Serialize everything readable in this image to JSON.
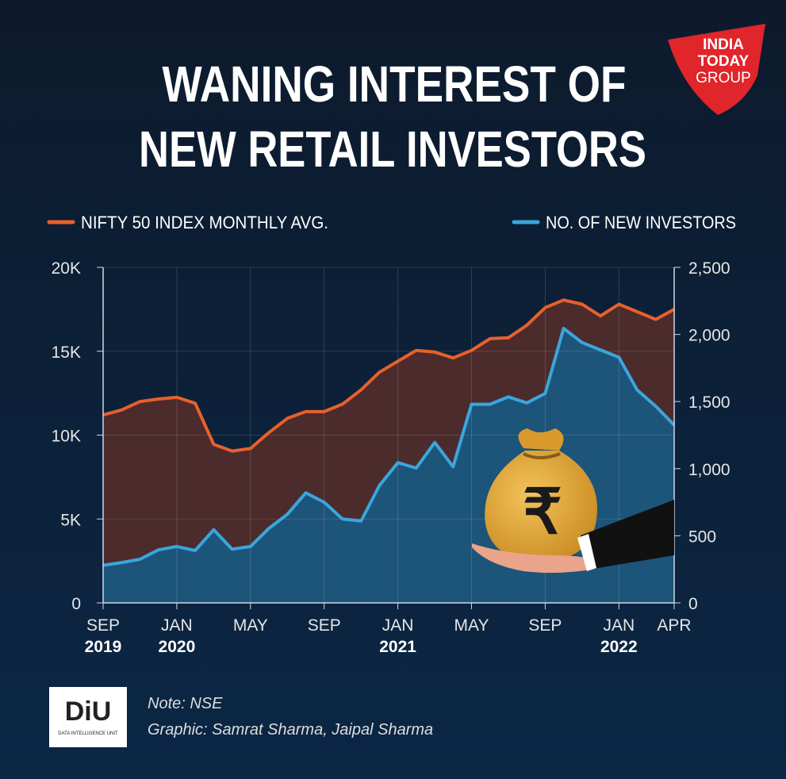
{
  "logo": {
    "line1": "INDIA",
    "line2": "TODAY",
    "line3": "GROUP"
  },
  "chart_data": {
    "type": "area",
    "title": [
      "WANING INTEREST OF",
      "NEW RETAIL INVESTORS"
    ],
    "categories": [
      "SEP",
      null,
      null,
      null,
      "JAN",
      null,
      null,
      null,
      "MAY",
      null,
      null,
      null,
      "SEP",
      null,
      null,
      null,
      "JAN",
      null,
      null,
      null,
      "MAY",
      null,
      null,
      null,
      "SEP",
      null,
      null,
      null,
      "JAN",
      null,
      null,
      "APR"
    ],
    "years": [
      "2019",
      null,
      null,
      null,
      "2020",
      null,
      null,
      null,
      null,
      null,
      null,
      null,
      null,
      null,
      null,
      null,
      "2021",
      null,
      null,
      null,
      null,
      null,
      null,
      null,
      null,
      null,
      null,
      null,
      "2022",
      null,
      null,
      null
    ],
    "series": [
      {
        "name": "NIFTY 50 INDEX MONTHLY AVG.",
        "color": "#e8602c",
        "fill": "#4b2b2c",
        "values": [
          11200,
          11500,
          12000,
          12150,
          12250,
          11900,
          9450,
          9050,
          9200,
          10150,
          11000,
          11400,
          11400,
          11850,
          12700,
          13750,
          14400,
          15050,
          14950,
          14600,
          15050,
          15750,
          15800,
          16550,
          17600,
          18050,
          17800,
          17100,
          17800,
          17350,
          16900,
          17500
        ]
      },
      {
        "name": "NO. OF NEW INVESTORS",
        "color": "#3aa6dc",
        "fill": "#1d5479",
        "axis": "y2",
        "values": [
          280,
          300,
          325,
          395,
          420,
          390,
          545,
          400,
          420,
          555,
          660,
          820,
          750,
          625,
          610,
          875,
          1045,
          1005,
          1195,
          1015,
          1480,
          1480,
          1535,
          1490,
          1560,
          2045,
          1940,
          1885,
          1830,
          1585,
          1465,
          1325
        ]
      }
    ],
    "ylim": [
      0,
      20000
    ],
    "yticks": [
      0,
      {
        "value": 5000,
        "label": "5K"
      },
      {
        "value": 10000,
        "label": "10K"
      },
      {
        "value": 15000,
        "label": "15K"
      },
      {
        "value": 20000,
        "label": "20K"
      }
    ],
    "y2lim": [
      0,
      2500
    ],
    "y2ticks": [
      0,
      500,
      {
        "value": 1000,
        "label": "1,000"
      },
      {
        "value": 1500,
        "label": "1,500"
      },
      {
        "value": 2000,
        "label": "2,000"
      },
      {
        "value": 2500,
        "label": "2,500"
      }
    ],
    "grid": true
  },
  "footer": {
    "logo": "DiU",
    "logo_sub": "DATA INTELLIGENCE UNIT",
    "note": "Note: NSE",
    "credit": "Graphic: Samrat Sharma, Jaipal Sharma"
  }
}
